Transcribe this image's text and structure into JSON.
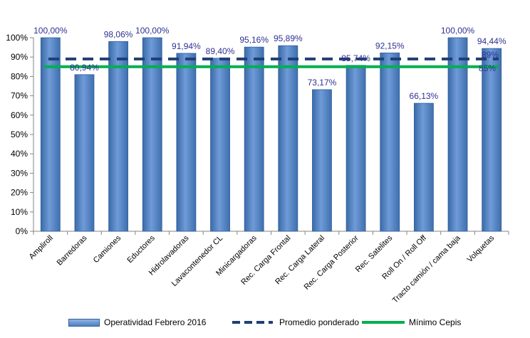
{
  "chart_data": {
    "type": "bar",
    "categories": [
      "Ampliroll",
      "Barredoras",
      "Camiones",
      "Eductores",
      "Hidrolavadoras",
      "Lavacontenedor CL",
      "Minicargadoras",
      "Rec. Carga Frontal",
      "Rec. Carga Lateral",
      "Rec. Carga Posterior",
      "Rec. Satelites",
      "Roll On / Roll Off",
      "Tracto camión / cama baja",
      "Volquetas"
    ],
    "series": [
      {
        "name": "Operatividad Febrero 2016",
        "values": [
          100.0,
          80.94,
          98.06,
          100.0,
          91.94,
          89.4,
          95.16,
          95.89,
          73.17,
          85.74,
          92.15,
          66.13,
          100.0,
          94.44
        ],
        "labels": [
          "100,00%",
          "80,94%",
          "98,06%",
          "100,00%",
          "91,94%",
          "89,40%",
          "95,16%",
          "95,89%",
          "73,17%",
          "85,74%",
          "92,15%",
          "66,13%",
          "100,00%",
          "94,44%"
        ],
        "color": "#4f81bd"
      },
      {
        "name": "Promedio ponderado",
        "value": 89,
        "label": "89%",
        "color": "#1f3f74",
        "style": "dashed"
      },
      {
        "name": "Mínimo Cepis",
        "value": 85,
        "label": "85%",
        "color": "#00b050",
        "style": "solid"
      }
    ],
    "yticks": [
      "0%",
      "10%",
      "20%",
      "30%",
      "40%",
      "50%",
      "60%",
      "70%",
      "80%",
      "90%",
      "100%"
    ],
    "ylim": [
      0,
      100
    ],
    "grid": false,
    "legend_position": "bottom"
  }
}
